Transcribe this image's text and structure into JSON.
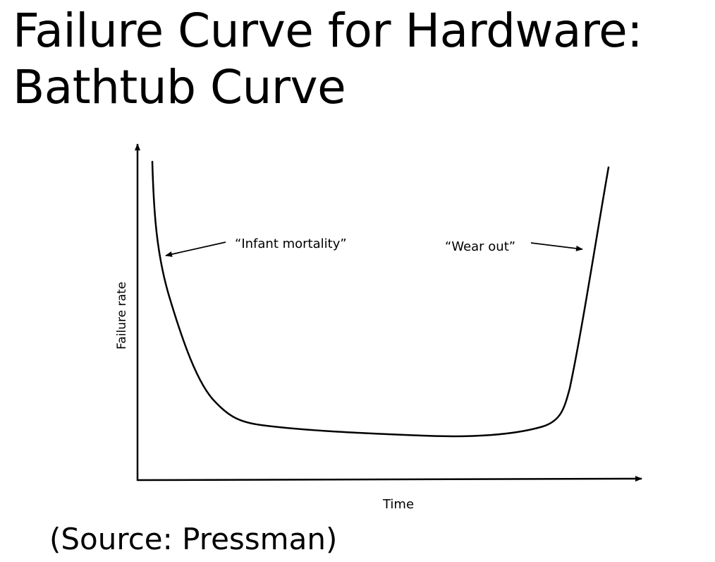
{
  "slide": {
    "title_line_1": "Failure Curve for Hardware:",
    "title_line_2": "Bathtub Curve",
    "source": "(Source: Pressman)"
  },
  "diagram": {
    "y_axis_label": "Failure rate",
    "x_axis_label": "Time",
    "annotations": {
      "infant_mortality": "“Infant mortality”",
      "wear_out": "“Wear out”"
    },
    "stroke_color": "#000000"
  }
}
